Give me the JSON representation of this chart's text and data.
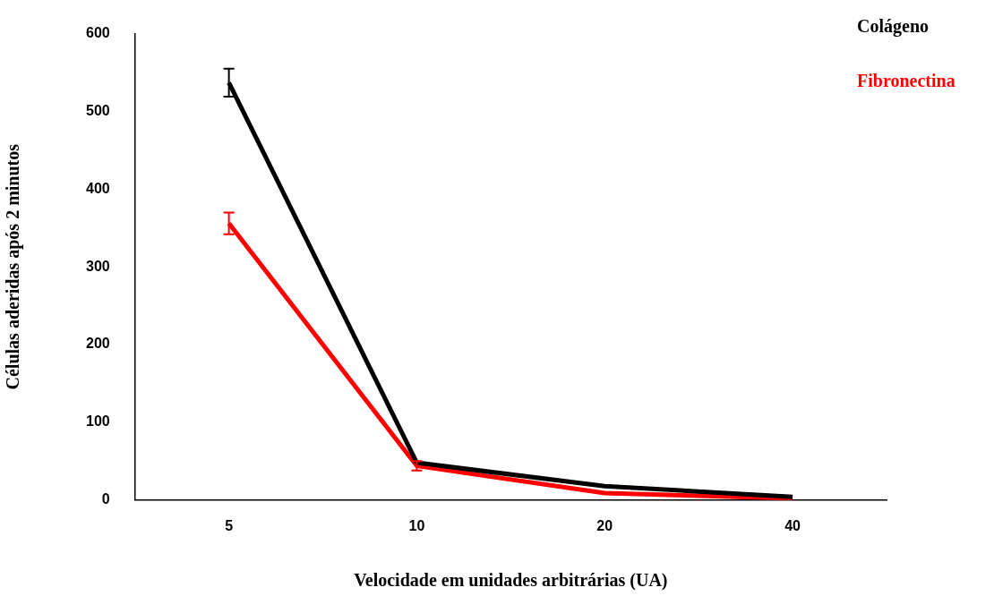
{
  "chart_data": {
    "type": "line",
    "xlabel": "Velocidade em unidades arbitrárias (UA)",
    "ylabel": "Células aderidas após 2 minutos",
    "categories": [
      "5",
      "10",
      "20",
      "40"
    ],
    "series": [
      {
        "name": "Colágeno",
        "color": "#000000",
        "values": [
          537,
          48,
          18,
          4
        ],
        "errors": [
          18,
          null,
          null,
          null
        ]
      },
      {
        "name": "Fibronectina",
        "color": "#ff0000",
        "values": [
          356,
          44,
          9,
          2
        ],
        "errors": [
          14,
          6,
          null,
          null
        ]
      }
    ],
    "ylim": [
      0,
      600
    ],
    "yticks": [
      0,
      100,
      200,
      300,
      400,
      500,
      600
    ],
    "grid": false,
    "legend": "top right",
    "marker": "none",
    "line_style": "solid"
  }
}
